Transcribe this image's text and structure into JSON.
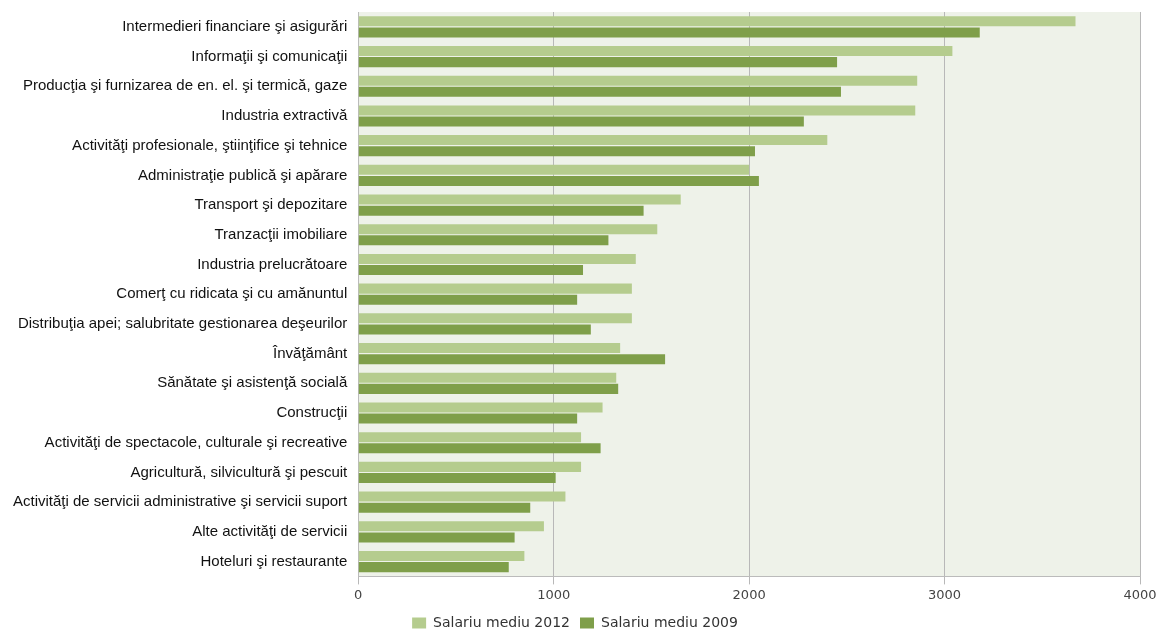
{
  "chart_data": {
    "type": "bar",
    "orientation": "horizontal",
    "categories": [
      "Intermedieri financiare şi asigurări",
      "Informaţii şi comunicaţii",
      "Producţia şi furnizarea de en. el. şi termică, gaze",
      "Industria extractivă",
      "Activităţi profesionale, ştiinţifice şi tehnice",
      "Administraţie publică şi apărare",
      "Transport şi depozitare",
      "Tranzacţii imobiliare",
      "Industria prelucrătoare",
      "Comerţ cu ridicata şi cu amănuntul",
      "Distribuţia apei; salubritate gestionarea deşeurilor",
      "Învăţământ",
      "Sănătate şi asistenţă socială",
      "Construcţii",
      "Activităţi de spectacole, culturale şi recreative",
      "Agricultură, silvicultură şi pescuit",
      "Activităţi de servicii administrative şi servicii suport",
      "Alte activităţi de servicii",
      "Hoteluri şi restaurante"
    ],
    "series": [
      {
        "name": "Salariu mediu 2012",
        "color": "#b5cc8e",
        "values": [
          3670,
          3040,
          2860,
          2850,
          2400,
          2000,
          1650,
          1530,
          1420,
          1400,
          1400,
          1340,
          1320,
          1250,
          1140,
          1140,
          1060,
          950,
          850
        ]
      },
      {
        "name": "Salariu mediu 2009",
        "color": "#7f9f4a",
        "values": [
          3180,
          2450,
          2470,
          2280,
          2030,
          2050,
          1460,
          1280,
          1150,
          1120,
          1190,
          1570,
          1330,
          1120,
          1240,
          1010,
          880,
          800,
          770
        ]
      }
    ],
    "xlim": [
      0,
      4000
    ],
    "xticks": [
      0,
      1000,
      2000,
      3000,
      4000
    ],
    "grid": "x",
    "legend": "bottom"
  }
}
